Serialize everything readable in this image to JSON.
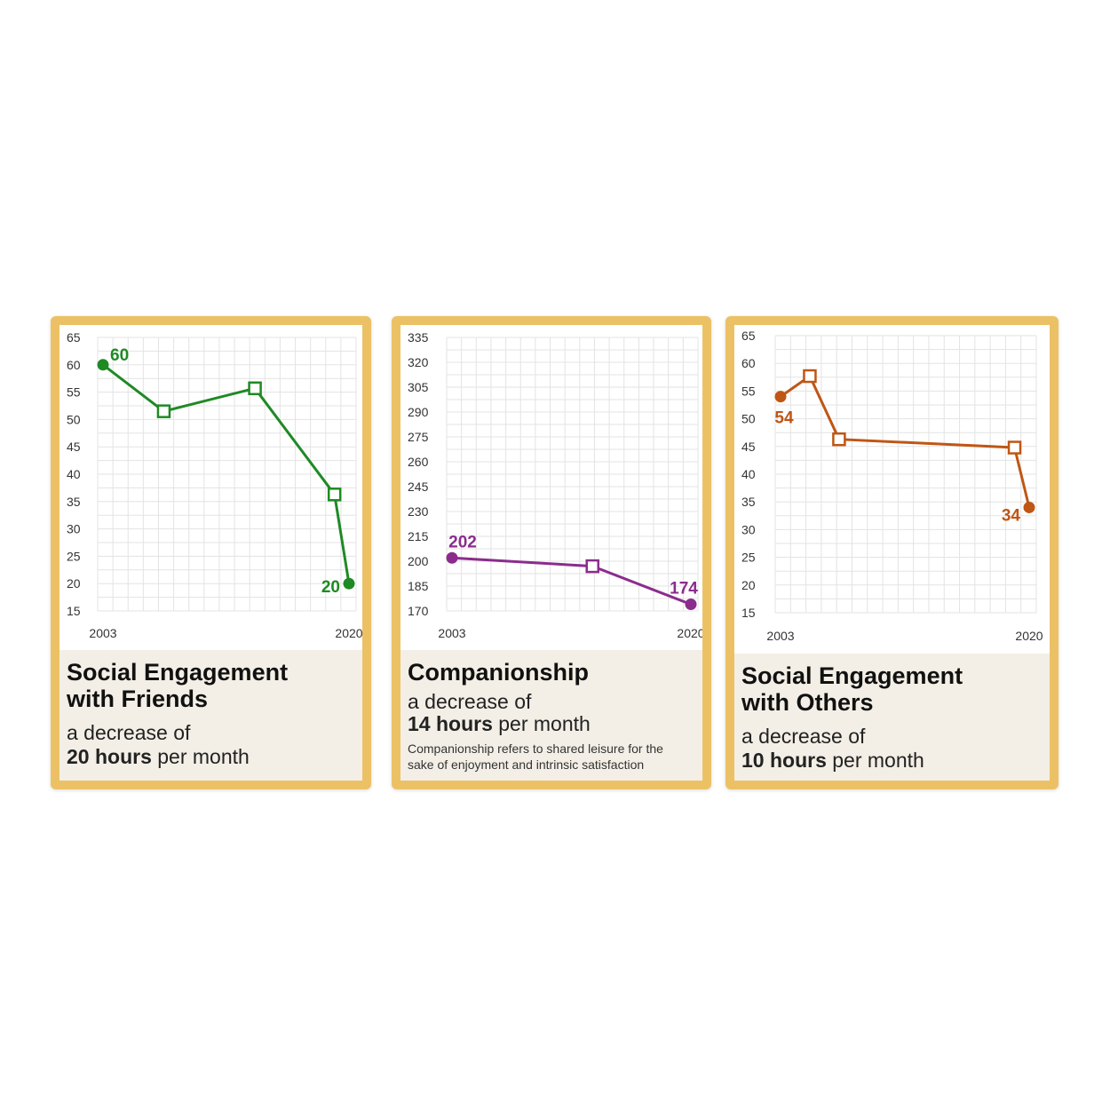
{
  "colors": {
    "card_border": "#ecc166",
    "caption_bg": "#f3efe6",
    "grid": "#e3e3e3"
  },
  "cards": [
    {
      "title_line1": "Social Engagement",
      "title_line2": "with Friends",
      "sub_line1": "a decrease of",
      "sub_bold": "20 hours",
      "sub_rest": " per month",
      "note_line1": "",
      "note_line2": ""
    },
    {
      "title_line1": "Companionship",
      "title_line2": "",
      "sub_line1": "a decrease of",
      "sub_bold": "14 hours",
      "sub_rest": " per month",
      "note_line1": "Companionship refers to shared leisure for the",
      "note_line2": "sake of enjoyment and intrinsic satisfaction"
    },
    {
      "title_line1": "Social Engagement",
      "title_line2": "with Others",
      "sub_line1": "a decrease of",
      "sub_bold": "10 hours",
      "sub_rest": " per month",
      "note_line1": "",
      "note_line2": ""
    }
  ],
  "chart_data": [
    {
      "type": "line",
      "color": "#1e8a24",
      "x": [
        2003,
        2007.2,
        2013.5,
        2019,
        2020
      ],
      "values": [
        60,
        51.5,
        55.7,
        36.3,
        20
      ],
      "markers": [
        "circle",
        "square",
        "square",
        "square",
        "circle"
      ],
      "point_labels": [
        "60",
        "",
        "",
        "",
        "20"
      ],
      "xticks": [
        "2003",
        "2020"
      ],
      "yticks": [
        "15",
        "20",
        "25",
        "30",
        "35",
        "40",
        "45",
        "50",
        "55",
        "60",
        "65"
      ],
      "ylim": [
        15,
        65
      ],
      "xlim": [
        2003,
        2020
      ],
      "grid": true
    },
    {
      "type": "line",
      "color": "#8b2c8d",
      "x": [
        2003,
        2013,
        2020
      ],
      "values": [
        202,
        197,
        174
      ],
      "markers": [
        "circle",
        "square",
        "circle"
      ],
      "point_labels": [
        "202",
        "",
        "174"
      ],
      "xticks": [
        "2003",
        "2020"
      ],
      "yticks": [
        "170",
        "185",
        "200",
        "215",
        "230",
        "245",
        "260",
        "275",
        "290",
        "305",
        "320",
        "335"
      ],
      "ylim": [
        170,
        335
      ],
      "xlim": [
        2003,
        2020
      ],
      "grid": true
    },
    {
      "type": "line",
      "color": "#bf5614",
      "x": [
        2003,
        2005,
        2007,
        2019,
        2020
      ],
      "values": [
        54,
        57.7,
        46.3,
        44.8,
        34
      ],
      "markers": [
        "circle",
        "square",
        "square",
        "square",
        "circle"
      ],
      "point_labels": [
        "54",
        "",
        "",
        "",
        "34"
      ],
      "xticks": [
        "2003",
        "2020"
      ],
      "yticks": [
        "15",
        "20",
        "25",
        "30",
        "35",
        "40",
        "45",
        "50",
        "55",
        "60",
        "65"
      ],
      "ylim": [
        15,
        65
      ],
      "xlim": [
        2003,
        2020
      ],
      "grid": true
    }
  ]
}
